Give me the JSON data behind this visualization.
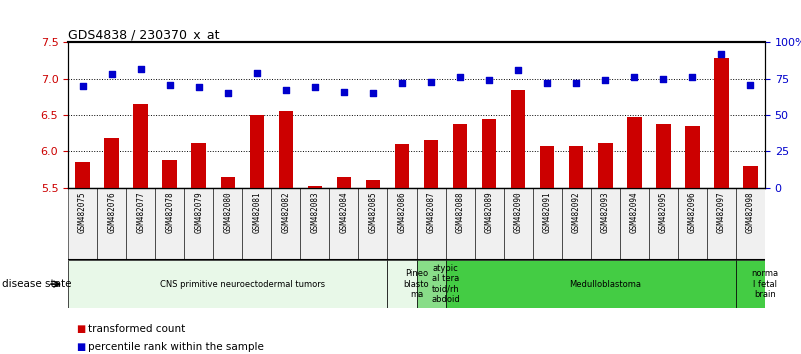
{
  "title": "GDS4838 / 230370_x_at",
  "samples": [
    "GSM482075",
    "GSM482076",
    "GSM482077",
    "GSM482078",
    "GSM482079",
    "GSM482080",
    "GSM482081",
    "GSM482082",
    "GSM482083",
    "GSM482084",
    "GSM482085",
    "GSM482086",
    "GSM482087",
    "GSM482088",
    "GSM482089",
    "GSM482090",
    "GSM482091",
    "GSM482092",
    "GSM482093",
    "GSM482094",
    "GSM482095",
    "GSM482096",
    "GSM482097",
    "GSM482098"
  ],
  "transformed_count": [
    5.85,
    6.18,
    6.65,
    5.88,
    6.12,
    5.65,
    6.5,
    6.55,
    5.52,
    5.65,
    5.6,
    6.1,
    6.15,
    6.38,
    6.45,
    6.85,
    6.07,
    6.07,
    6.12,
    6.48,
    6.38,
    6.35,
    7.28,
    5.8
  ],
  "percentile_rank": [
    70,
    78,
    82,
    71,
    69,
    65,
    79,
    67,
    69,
    66,
    65,
    72,
    73,
    76,
    74,
    81,
    72,
    72,
    74,
    76,
    75,
    76,
    92,
    71
  ],
  "ylim_left": [
    5.5,
    7.5
  ],
  "ylim_right": [
    0,
    100
  ],
  "yticks_left": [
    5.5,
    6.0,
    6.5,
    7.0,
    7.5
  ],
  "yticks_right": [
    0,
    25,
    50,
    75,
    100
  ],
  "ytick_labels_right": [
    "0",
    "25",
    "50",
    "75",
    "100%"
  ],
  "bar_color": "#cc0000",
  "dot_color": "#0000cc",
  "bg_color": "#f0f0f0",
  "disease_groups": [
    {
      "label": "CNS primitive neuroectodermal tumors",
      "start": 0,
      "end": 11,
      "color": "#e8f8e8"
    },
    {
      "label": "Pineo\nblasto\nma",
      "start": 11,
      "end": 12,
      "color": "#e8f8e8"
    },
    {
      "label": "atypic\nal tera\ntoid/rh\nabdoid",
      "start": 12,
      "end": 13,
      "color": "#88dd88"
    },
    {
      "label": "Medulloblastoma",
      "start": 13,
      "end": 23,
      "color": "#44cc44"
    },
    {
      "label": "norma\nl fetal\nbrain",
      "start": 23,
      "end": 24,
      "color": "#44cc44"
    }
  ],
  "disease_state_label": "disease state",
  "legend_bar_label": "transformed count",
  "legend_dot_label": "percentile rank within the sample"
}
